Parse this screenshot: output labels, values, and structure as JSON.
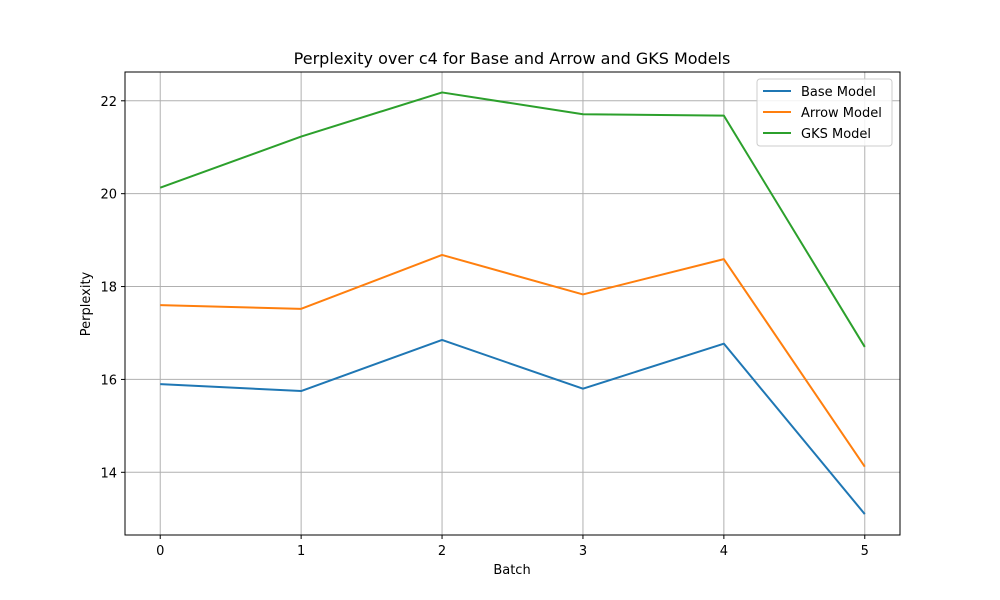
{
  "chart_data": {
    "type": "line",
    "title": "Perplexity over c4 for Base and Arrow and GKS Models",
    "xlabel": "Batch",
    "ylabel": "Perplexity",
    "x": [
      0,
      1,
      2,
      3,
      4,
      5
    ],
    "xlim": [
      -0.25,
      5.25
    ],
    "ylim": [
      12.65,
      22.62
    ],
    "xticks": [
      0,
      1,
      2,
      3,
      4,
      5
    ],
    "yticks": [
      14,
      16,
      18,
      20,
      22
    ],
    "grid": true,
    "legend_position": "top-right",
    "series": [
      {
        "name": "Base Model",
        "color": "#1f77b4",
        "values": [
          15.9,
          15.75,
          16.85,
          15.8,
          16.77,
          13.1
        ]
      },
      {
        "name": "Arrow Model",
        "color": "#ff7f0e",
        "values": [
          17.6,
          17.52,
          18.68,
          17.83,
          18.59,
          14.12
        ]
      },
      {
        "name": "GKS Model",
        "color": "#2ca02c",
        "values": [
          20.13,
          21.23,
          22.18,
          21.71,
          21.68,
          16.7
        ]
      }
    ]
  }
}
